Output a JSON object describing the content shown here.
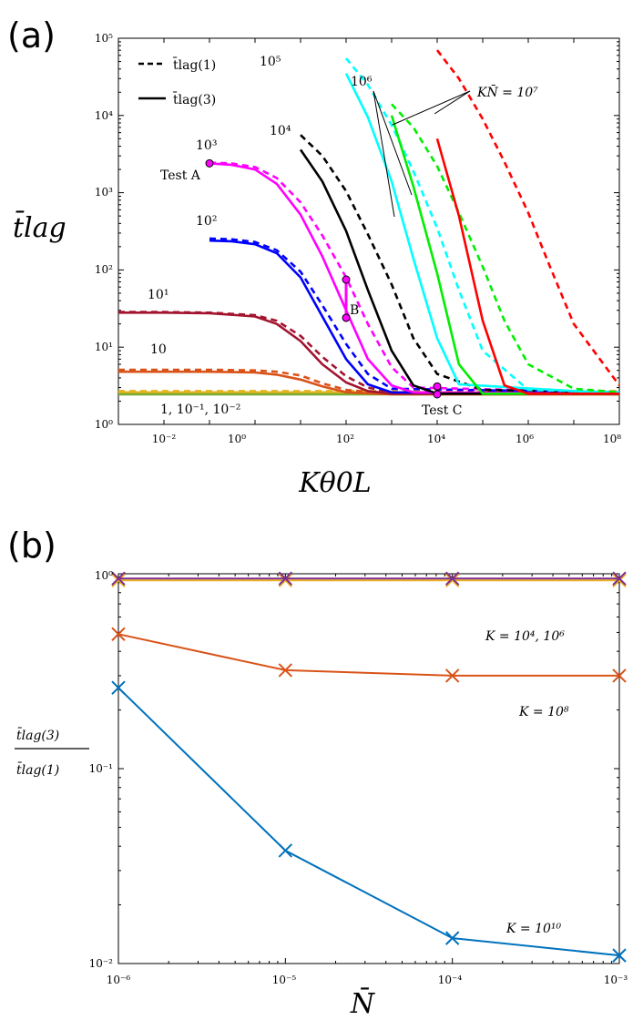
{
  "panels": {
    "a": {
      "label": "(a)",
      "ylabel": "t̄lag",
      "xlabel": "Kθ0L",
      "legend": {
        "dashed": "t̄lag(1)",
        "solid": "t̄lag(3)"
      },
      "annotations": {
        "test_a": "Test A",
        "test_b": "B",
        "test_c": "Test C",
        "kn_1e7": "KN̄ = 10⁷",
        "n_1e6": "10⁶",
        "n_1e5": "10⁵",
        "n_1e4": "10⁴",
        "n_1e3": "10³",
        "n_1e2": "10²",
        "n_1e1": "10¹",
        "n_10": "10",
        "n_small": "1, 10⁻¹, 10⁻²"
      },
      "yticks": [
        "10⁰",
        "10¹",
        "10²",
        "10³",
        "10⁴",
        "10⁵"
      ],
      "xticks": [
        "10⁻²",
        "10⁰",
        "10²",
        "10⁴",
        "10⁶",
        "10⁸"
      ]
    },
    "b": {
      "label": "(b)",
      "ylabel_num": "t̄lag(3)",
      "ylabel_den": "t̄lag(1)",
      "xlabel": "N̄",
      "annotations": {
        "k_small": "K = 10⁴, 10⁶",
        "k_1e8": "K = 10⁸",
        "k_1e10": "K = 10¹⁰"
      },
      "yticks": [
        "10⁻²",
        "10⁻¹",
        "10⁰"
      ],
      "xticks": [
        "10⁻⁶",
        "10⁻⁵",
        "10⁻⁴",
        "10⁻³"
      ]
    }
  },
  "chart_data": [
    {
      "type": "line",
      "xscale": "log",
      "yscale": "log",
      "xlim": [
        0.001,
        100000000
      ],
      "ylim": [
        1,
        100000
      ],
      "grid": false,
      "legend_position": "top-left",
      "series": [
        {
          "color": "#e6b320",
          "style": "solid",
          "x": [
            0.001,
            100000000
          ],
          "y": [
            2.6,
            2.6
          ]
        },
        {
          "color": "#e6b320",
          "style": "dashed",
          "x": [
            0.001,
            100000000
          ],
          "y": [
            2.7,
            2.7
          ]
        },
        {
          "color": "#77ac30",
          "style": "solid",
          "x": [
            0.001,
            100000000
          ],
          "y": [
            2.45,
            2.45
          ]
        },
        {
          "color": "#d95319",
          "style": "solid",
          "x": [
            0.001,
            0.01,
            0.1,
            1,
            3,
            10,
            30,
            100,
            1000,
            100000000
          ],
          "y": [
            4.8,
            4.8,
            4.8,
            4.7,
            4.4,
            3.8,
            3.1,
            2.6,
            2.45,
            2.45
          ]
        },
        {
          "color": "#d95319",
          "style": "dashed",
          "x": [
            0.001,
            0.01,
            0.1,
            1,
            3,
            10,
            30,
            100,
            1000,
            100000000
          ],
          "y": [
            5.1,
            5.1,
            5.1,
            5.0,
            4.8,
            4.3,
            3.4,
            2.8,
            2.5,
            2.5
          ]
        },
        {
          "color": "#a2142f",
          "style": "solid",
          "x": [
            0.001,
            0.01,
            0.1,
            1,
            3,
            10,
            30,
            100,
            300,
            1000,
            100000000
          ],
          "y": [
            28,
            28,
            27.5,
            25,
            20,
            12,
            6,
            3.5,
            2.7,
            2.5,
            2.5
          ]
        },
        {
          "color": "#a2142f",
          "style": "dashed",
          "x": [
            0.001,
            0.01,
            0.1,
            1,
            3,
            10,
            30,
            100,
            300,
            1000,
            100000000
          ],
          "y": [
            28.5,
            28.5,
            28,
            26,
            22,
            14,
            7.5,
            4.2,
            3.0,
            2.6,
            2.6
          ]
        },
        {
          "color": "#0000ff",
          "style": "solid",
          "x": [
            0.1,
            0.3,
            1,
            3,
            10,
            30,
            100,
            300,
            1000,
            100000000
          ],
          "y": [
            240,
            235,
            215,
            165,
            80,
            25,
            7,
            3.3,
            2.6,
            2.5
          ]
        },
        {
          "color": "#0000ff",
          "style": "dashed",
          "x": [
            0.1,
            0.3,
            1,
            3,
            10,
            30,
            100,
            300,
            1000,
            100000000
          ],
          "y": [
            255,
            250,
            230,
            180,
            95,
            35,
            11,
            4.5,
            2.9,
            2.6
          ]
        },
        {
          "color": "#ff00ff",
          "style": "solid",
          "x": [
            0.1,
            0.3,
            1,
            3,
            10,
            30,
            100,
            300,
            1000,
            3000,
            100000000
          ],
          "y": [
            2400,
            2300,
            2000,
            1300,
            520,
            150,
            30,
            7,
            3.2,
            2.6,
            2.5
          ]
        },
        {
          "color": "#ff00ff",
          "style": "dashed",
          "x": [
            0.1,
            0.3,
            1,
            3,
            10,
            30,
            100,
            300,
            1000,
            3000,
            100000000
          ],
          "y": [
            2450,
            2400,
            2150,
            1550,
            750,
            280,
            80,
            20,
            5.5,
            3.0,
            2.6
          ]
        },
        {
          "color": "#000000",
          "style": "solid",
          "x": [
            10,
            30,
            100,
            300,
            1000,
            3000,
            10000,
            100000000
          ],
          "y": [
            3600,
            1400,
            320,
            55,
            9,
            3.2,
            2.5,
            2.5
          ]
        },
        {
          "color": "#000000",
          "style": "dashed",
          "x": [
            10,
            30,
            100,
            300,
            1000,
            3000,
            10000,
            100000,
            100000000
          ],
          "y": [
            5600,
            3000,
            1050,
            290,
            65,
            13,
            4.5,
            2.8,
            2.6
          ]
        },
        {
          "color": "#00ffff",
          "style": "solid",
          "x": [
            100,
            300,
            1000,
            3000,
            10000,
            30000,
            100000000
          ],
          "y": [
            35000,
            9500,
            1400,
            140,
            13,
            3.3,
            2.5
          ]
        },
        {
          "color": "#00ffff",
          "style": "dashed",
          "x": [
            100,
            300,
            1000,
            3000,
            10000,
            30000,
            100000,
            1000000,
            100000000
          ],
          "y": [
            55000,
            25000,
            7500,
            1900,
            350,
            55,
            9,
            2.8,
            2.6
          ]
        },
        {
          "color": "#00ee00",
          "style": "solid",
          "x": [
            1000,
            3000,
            10000,
            30000,
            100000,
            100000000
          ],
          "y": [
            10000,
            1200,
            90,
            6,
            2.5,
            2.5
          ]
        },
        {
          "color": "#00ee00",
          "style": "dashed",
          "x": [
            1000,
            3000,
            10000,
            30000,
            100000,
            300000,
            1000000,
            10000000,
            100000000
          ],
          "y": [
            14000,
            7000,
            2200,
            550,
            110,
            22,
            6,
            2.9,
            2.6
          ]
        },
        {
          "color": "#ff0000",
          "style": "solid",
          "x": [
            10000,
            30000,
            100000,
            300000,
            1000000,
            100000000
          ],
          "y": [
            5000,
            500,
            22,
            3.2,
            2.5,
            2.5
          ]
        },
        {
          "color": "#ff0000",
          "style": "dashed",
          "x": [
            10000,
            30000,
            100000,
            300000,
            1000000,
            3000000,
            10000000,
            100000000
          ],
          "y": [
            70000,
            30000,
            9000,
            2500,
            550,
            110,
            20,
            3.2
          ]
        }
      ],
      "markers": [
        {
          "label": "Test A",
          "x": 0.1,
          "y": 2400
        },
        {
          "label": "B",
          "x": 100,
          "y": 75
        },
        {
          "label": "B",
          "x": 100,
          "y": 24
        },
        {
          "label": "Test C",
          "x": 10000,
          "y": 3.1
        },
        {
          "label": "Test C",
          "x": 10000,
          "y": 2.45
        }
      ]
    },
    {
      "type": "line",
      "xscale": "log",
      "yscale": "log",
      "xlim": [
        1e-06,
        0.001
      ],
      "ylim": [
        0.01,
        1
      ],
      "grid": false,
      "x": [
        1e-06,
        1e-05,
        0.0001,
        0.001
      ],
      "series": [
        {
          "name": "K = 10¹⁰",
          "color": "#0072bd",
          "values": [
            0.26,
            0.038,
            0.0135,
            0.011
          ]
        },
        {
          "name": "K = 10⁸",
          "color": "#d95319",
          "values": [
            0.49,
            0.32,
            0.3,
            0.3
          ]
        },
        {
          "color": "#edb120",
          "values": [
            0.925,
            0.925,
            0.925,
            0.925
          ]
        },
        {
          "color": "#7e2f8e",
          "values": [
            0.945,
            0.945,
            0.945,
            0.945
          ]
        }
      ]
    }
  ]
}
